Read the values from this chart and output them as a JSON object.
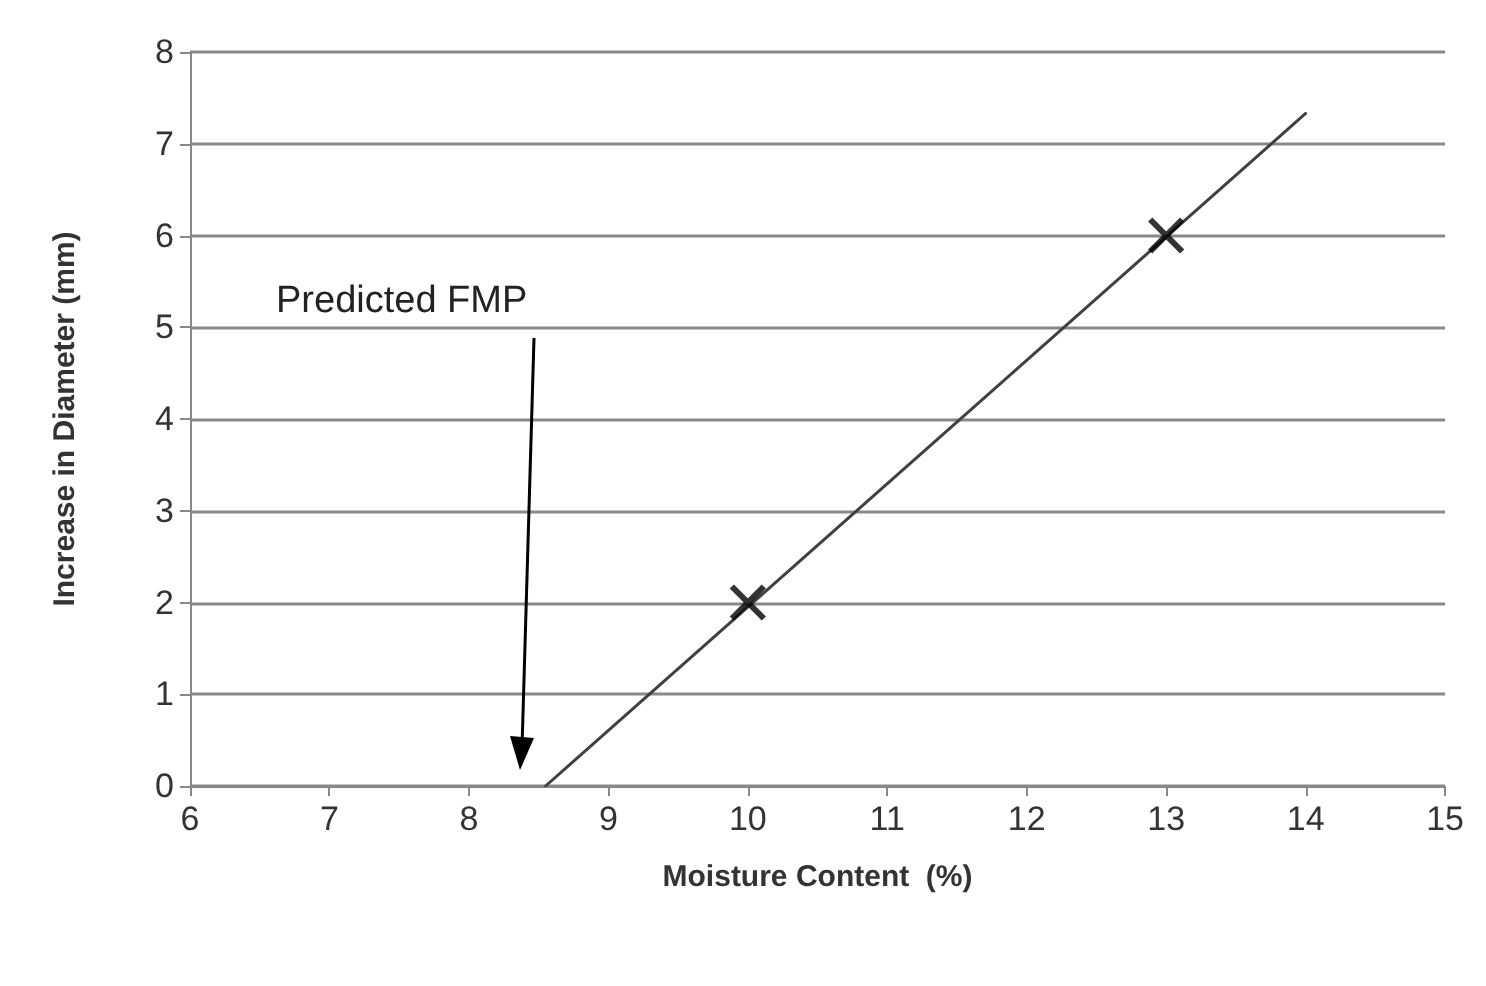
{
  "chart_data": {
    "type": "scatter",
    "xlabel": "Moisture Content  (%)",
    "ylabel": "Increase in Diameter (mm)",
    "xlim": [
      6,
      15
    ],
    "xticks": [
      6,
      7,
      8,
      9,
      10,
      11,
      12,
      13,
      14,
      15
    ],
    "ylim": [
      0,
      8
    ],
    "yticks": [
      0,
      1,
      2,
      3,
      4,
      5,
      6,
      7,
      8
    ],
    "grid": "y",
    "series": [
      {
        "x": [
          10,
          13
        ],
        "values": [
          2,
          6
        ],
        "color": "#000000",
        "marker": "cross"
      },
      {
        "type": "line",
        "x": [
          8.55,
          14
        ],
        "values": [
          0,
          7.33
        ],
        "color": "#404040",
        "marker": "none",
        "line_style": "solid"
      }
    ],
    "annotations": [
      "Predicted FMP"
    ]
  }
}
